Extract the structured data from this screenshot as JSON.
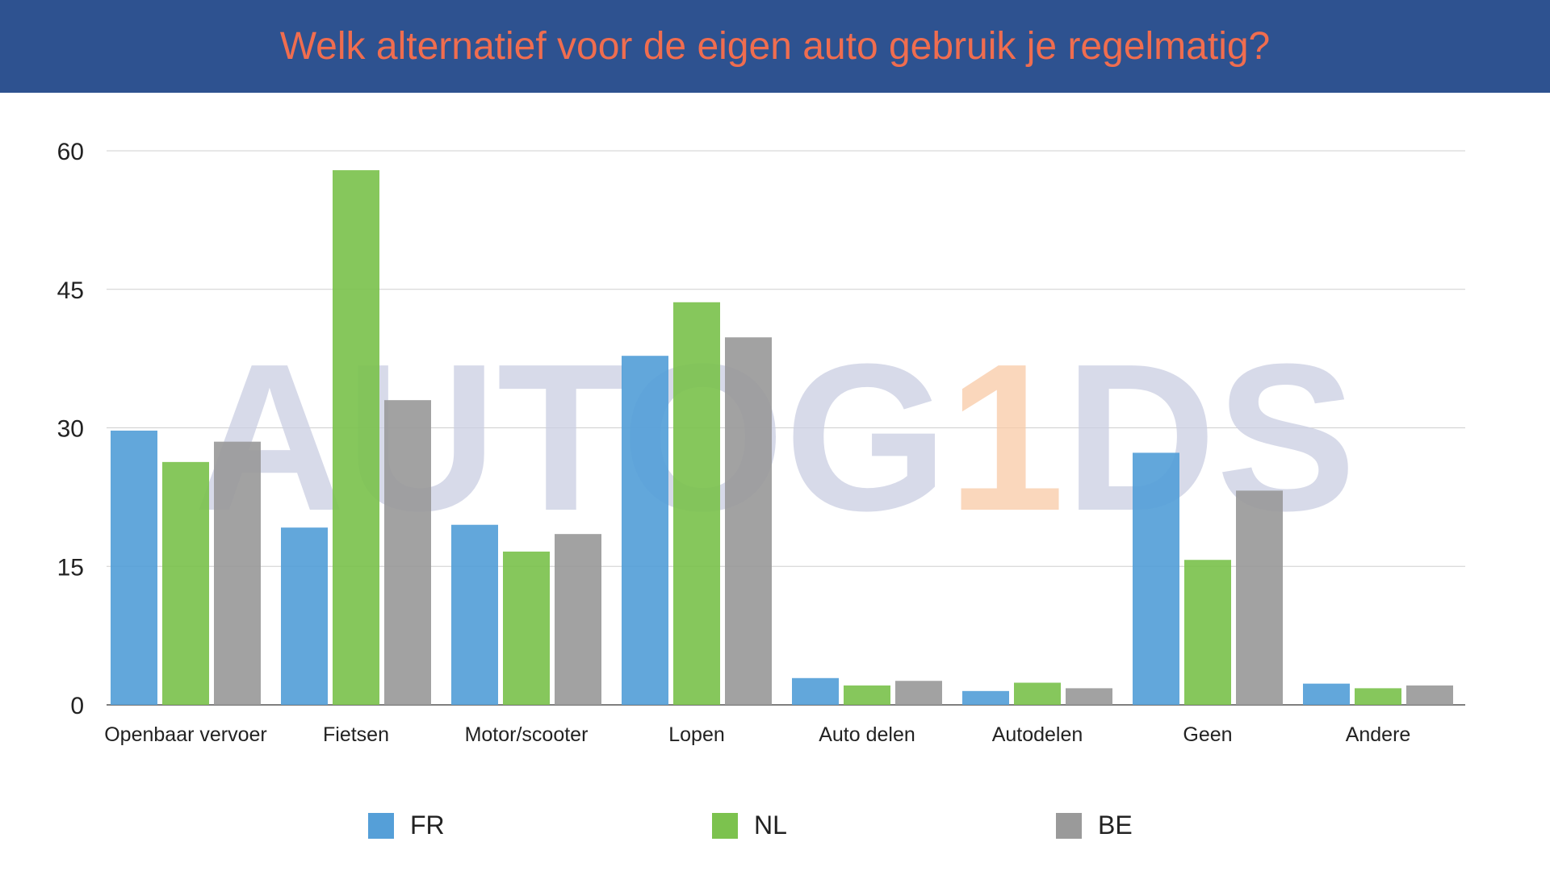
{
  "header": {
    "title": "Welk alternatief voor de eigen auto gebruik je regelmatig?"
  },
  "watermark": {
    "text_left": "AUTOG",
    "text_accent": "1",
    "text_right": "DS"
  },
  "colors": {
    "FR": "#559fd8",
    "NL": "#7cc24e",
    "BE": "#9a9a9a",
    "header_bg": "#2e5290",
    "title": "#f06d4f"
  },
  "chart_data": {
    "type": "bar",
    "title": "Welk alternatief voor de eigen auto gebruik je regelmatig?",
    "xlabel": "",
    "ylabel": "",
    "categories": [
      "Openbaar vervoer",
      "Fietsen",
      "Motor/scooter",
      "Lopen",
      "Auto delen",
      "Autodelen",
      "Geen",
      "Andere"
    ],
    "series": [
      {
        "name": "FR",
        "values": [
          29.7,
          19.2,
          19.5,
          37.8,
          2.9,
          1.5,
          27.3,
          2.3
        ]
      },
      {
        "name": "NL",
        "values": [
          26.3,
          57.9,
          16.6,
          43.6,
          2.1,
          2.4,
          15.7,
          1.8
        ]
      },
      {
        "name": "BE",
        "values": [
          28.5,
          33.0,
          18.5,
          39.8,
          2.6,
          1.8,
          23.2,
          2.1
        ]
      }
    ],
    "ylim": [
      0,
      60
    ],
    "yticks": [
      "0",
      "15",
      "30",
      "45",
      "60"
    ],
    "grid": true,
    "legend": "bottom"
  }
}
